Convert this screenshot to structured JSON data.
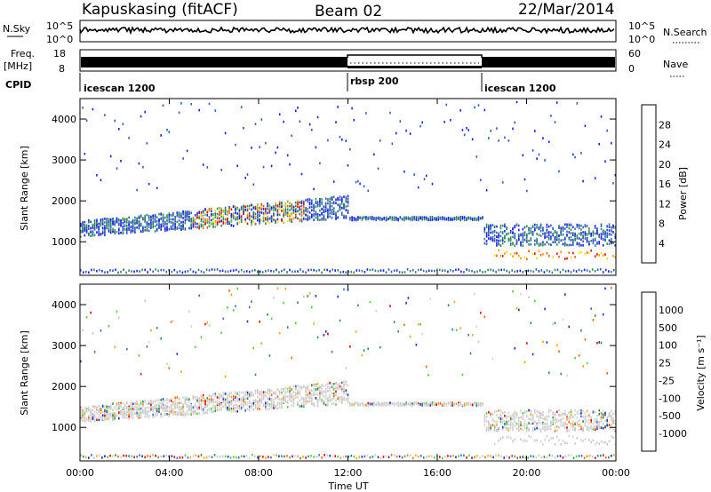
{
  "header": {
    "station": "Kapuskasing (fitACF)",
    "beam": "Beam 02",
    "date": "22/Mar/2014"
  },
  "strip": {
    "nsky_label": "N.Sky",
    "nsky_ticks": [
      "10^5",
      "10^0"
    ],
    "nsearch_label": "N.Search",
    "nsearch_ticks": [
      "10^5",
      "10^0"
    ],
    "freq_label": "Freq.",
    "freq_unit": "[MHz]",
    "freq_ticks": [
      "18",
      "8"
    ],
    "nave_label": "Nave",
    "nave_ticks": [
      "60",
      "0"
    ],
    "cpid_label": "CPID",
    "cpid_segments": [
      "icescan 1200",
      "rbsp 200",
      "icescan 1200"
    ]
  },
  "colors": {
    "power": [
      "#1a1aff",
      "#2d5fb8",
      "#2e8b57",
      "#4ecb3d",
      "#f0e000",
      "#ff9a00",
      "#ff5a00",
      "#ee0000"
    ],
    "velocity": [
      "#ee0000",
      "#ff6a00",
      "#ffa500",
      "#d3d3d3",
      "#c8c8c8",
      "#4fd13a",
      "#2e8b57",
      "#3a6fd0",
      "#1a30c0"
    ]
  },
  "chart_data": [
    {
      "type": "heatmap",
      "name": "power",
      "x_ticks": [
        "00:00",
        "04:00",
        "08:00",
        "12:00",
        "16:00",
        "20:00",
        "00:00"
      ],
      "ylabel": "Slant Range [km]",
      "y_ticks": [
        "4000",
        "3000",
        "2000",
        "1000"
      ],
      "ylim": [
        180,
        4500
      ],
      "colorbar": {
        "label": "Power [dB]",
        "ticks": [
          "28",
          "24",
          "20",
          "16",
          "12",
          "8",
          "4"
        ]
      }
    },
    {
      "type": "heatmap",
      "name": "velocity",
      "x_ticks": [
        "00:00",
        "04:00",
        "08:00",
        "12:00",
        "16:00",
        "20:00",
        "00:00"
      ],
      "xlabel": "Time UT",
      "ylabel": "Slant Range [km]",
      "y_ticks": [
        "4000",
        "3000",
        "2000",
        "1000"
      ],
      "ylim": [
        180,
        4500
      ],
      "colorbar": {
        "label": "Velocity [m s⁻¹]",
        "ticks": [
          "1000",
          "500",
          "100",
          "25",
          "-25",
          "-100",
          "-500",
          "-1000"
        ]
      }
    }
  ]
}
